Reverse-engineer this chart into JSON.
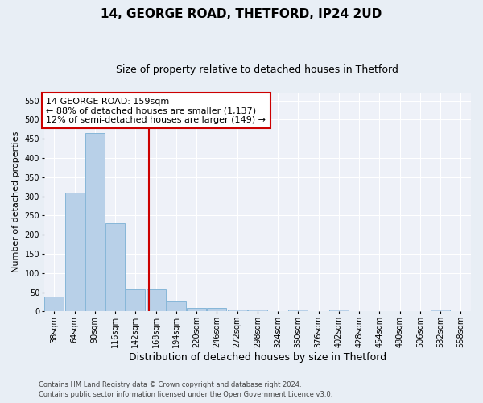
{
  "title1": "14, GEORGE ROAD, THETFORD, IP24 2UD",
  "title2": "Size of property relative to detached houses in Thetford",
  "xlabel": "Distribution of detached houses by size in Thetford",
  "ylabel": "Number of detached properties",
  "categories": [
    "38sqm",
    "64sqm",
    "90sqm",
    "116sqm",
    "142sqm",
    "168sqm",
    "194sqm",
    "220sqm",
    "246sqm",
    "272sqm",
    "298sqm",
    "324sqm",
    "350sqm",
    "376sqm",
    "402sqm",
    "428sqm",
    "454sqm",
    "480sqm",
    "506sqm",
    "532sqm",
    "558sqm"
  ],
  "values": [
    38,
    310,
    465,
    230,
    57,
    57,
    25,
    10,
    10,
    5,
    5,
    0,
    5,
    0,
    5,
    0,
    0,
    0,
    0,
    5,
    0
  ],
  "bar_color": "#b8d0e8",
  "bar_edgecolor": "#7aafd4",
  "marker_color": "#cc0000",
  "annotation_line1": "14 GEORGE ROAD: 159sqm",
  "annotation_line2": "← 88% of detached houses are smaller (1,137)",
  "annotation_line3": "12% of semi-detached houses are larger (149) →",
  "annotation_box_color": "#cc0000",
  "ylim": [
    0,
    570
  ],
  "yticks": [
    0,
    50,
    100,
    150,
    200,
    250,
    300,
    350,
    400,
    450,
    500,
    550
  ],
  "bg_color": "#e8eef5",
  "plot_bg": "#eef1f8",
  "grid_color": "#ffffff",
  "footer1": "Contains HM Land Registry data © Crown copyright and database right 2024.",
  "footer2": "Contains public sector information licensed under the Open Government Licence v3.0.",
  "title1_fontsize": 11,
  "title2_fontsize": 9,
  "xlabel_fontsize": 9,
  "ylabel_fontsize": 8,
  "tick_fontsize": 7,
  "annotation_fontsize": 8,
  "footer_fontsize": 6
}
